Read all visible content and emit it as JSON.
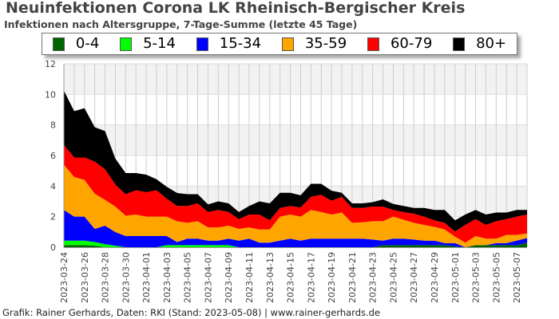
{
  "chart_data": {
    "type": "area",
    "stacked": true,
    "title": "Neuinfektionen Corona LK Rheinisch-Bergischer Kreis",
    "subtitle": "Infektionen nach Altersgruppe, 7-Tage-Summe (letzte 45 Tage)",
    "xlabel": "",
    "ylabel": "",
    "ylim": [
      0,
      12
    ],
    "yticks": [
      "0",
      "2",
      "4",
      "6",
      "8",
      "10",
      "12"
    ],
    "grid": true,
    "legend_position": "top",
    "x": [
      "2023-03-24",
      "2023-03-25",
      "2023-03-26",
      "2023-03-27",
      "2023-03-28",
      "2023-03-29",
      "2023-03-30",
      "2023-03-31",
      "2023-04-01",
      "2023-04-02",
      "2023-04-03",
      "2023-04-04",
      "2023-04-05",
      "2023-04-06",
      "2023-04-07",
      "2023-04-08",
      "2023-04-09",
      "2023-04-10",
      "2023-04-11",
      "2023-04-12",
      "2023-04-13",
      "2023-04-14",
      "2023-04-15",
      "2023-04-16",
      "2023-04-17",
      "2023-04-18",
      "2023-04-19",
      "2023-04-20",
      "2023-04-21",
      "2023-04-22",
      "2023-04-23",
      "2023-04-24",
      "2023-04-25",
      "2023-04-26",
      "2023-04-27",
      "2023-04-28",
      "2023-04-29",
      "2023-04-30",
      "2023-05-01",
      "2023-05-02",
      "2023-05-03",
      "2023-05-04",
      "2023-05-05",
      "2023-05-06",
      "2023-05-07",
      "2023-05-08"
    ],
    "xticks": [
      "2023-03-24",
      "2023-03-26",
      "2023-03-28",
      "2023-03-30",
      "2023-04-01",
      "2023-04-03",
      "2023-04-05",
      "2023-04-07",
      "2023-04-09",
      "2023-04-11",
      "2023-04-13",
      "2023-04-15",
      "2023-04-17",
      "2023-04-19",
      "2023-04-21",
      "2023-04-23",
      "2023-04-25",
      "2023-04-27",
      "2023-04-29",
      "2023-05-01",
      "2023-05-03",
      "2023-05-05",
      "2023-05-07"
    ],
    "series": [
      {
        "name": "0-4",
        "color": "#006400",
        "values": [
          0.14,
          0.14,
          0.14,
          0.1,
          0,
          0,
          0,
          0,
          0,
          0,
          0,
          0,
          0,
          0,
          0,
          0,
          0,
          0,
          0,
          0,
          0,
          0,
          0,
          0,
          0,
          0,
          0,
          0,
          0,
          0,
          0,
          0.14,
          0.14,
          0.14,
          0.14,
          0.14,
          0.14,
          0.14,
          0.05,
          0,
          0.14,
          0.14,
          0.14,
          0.14,
          0.14,
          0.3
        ]
      },
      {
        "name": "5-14",
        "color": "#00ff00",
        "values": [
          0.29,
          0.29,
          0.29,
          0.24,
          0.2,
          0.1,
          0,
          0,
          0,
          0,
          0.14,
          0.14,
          0.14,
          0.14,
          0.14,
          0.14,
          0.14,
          0,
          0,
          0,
          0,
          0,
          0,
          0,
          0,
          0,
          0,
          0,
          0,
          0,
          0,
          0,
          0,
          0,
          0,
          0,
          0,
          0,
          0,
          0,
          0,
          0,
          0,
          0,
          0,
          0
        ]
      },
      {
        "name": "15-34",
        "color": "#0000ff",
        "values": [
          2.01,
          1.57,
          1.57,
          0.86,
          1.21,
          0.89,
          0.73,
          0.73,
          0.73,
          0.73,
          0.59,
          0.2,
          0.42,
          0.42,
          0.29,
          0.29,
          0.42,
          0.43,
          0.56,
          0.3,
          0.3,
          0.43,
          0.56,
          0.43,
          0.56,
          0.56,
          0.56,
          0.56,
          0.56,
          0.56,
          0.5,
          0.29,
          0.42,
          0.42,
          0.36,
          0.29,
          0.29,
          0.13,
          0.22,
          0,
          0,
          0,
          0.13,
          0.13,
          0.29,
          0.3
        ]
      },
      {
        "name": "35-59",
        "color": "#ffa500",
        "values": [
          2.96,
          2.6,
          2.4,
          2.3,
          1.69,
          1.67,
          1.33,
          1.41,
          1.27,
          1.27,
          1.27,
          1.36,
          1.04,
          1.14,
          0.87,
          0.87,
          0.85,
          0.77,
          0.74,
          0.86,
          0.86,
          1.57,
          1.58,
          1.57,
          1.88,
          1.74,
          1.58,
          1.71,
          1.04,
          1.07,
          1.2,
          1.27,
          1.44,
          1.24,
          1.1,
          1.03,
          0.9,
          0.89,
          0.42,
          0.3,
          0.59,
          0.42,
          0.29,
          0.54,
          0.38,
          0.3
        ]
      },
      {
        "name": "60-79",
        "color": "#ff0000",
        "values": [
          1.3,
          1.27,
          1.47,
          2.1,
          2.0,
          1.44,
          1.41,
          1.59,
          1.6,
          1.73,
          1.17,
          1.0,
          1.1,
          1.17,
          1.0,
          1.14,
          0.89,
          0.64,
          0.84,
          0.98,
          0.6,
          0.57,
          0.56,
          0.6,
          0.86,
          1.13,
          0.9,
          1.03,
          0.97,
          0.94,
          0.96,
          0.96,
          0.44,
          0.5,
          0.6,
          0.54,
          0.43,
          0.44,
          0.34,
          1.16,
          1.11,
          0.9,
          1.14,
          1.03,
          1.19,
          1.24
        ]
      },
      {
        "name": "80+",
        "color": "#000000",
        "values": [
          3.55,
          3.03,
          3.23,
          2.25,
          2.5,
          1.7,
          1.38,
          1.12,
          1.15,
          0.72,
          0.78,
          0.85,
          0.77,
          0.6,
          0.5,
          0.56,
          0.57,
          0.46,
          0.56,
          0.86,
          1.11,
          0.99,
          0.86,
          0.8,
          0.85,
          0.72,
          0.66,
          0.26,
          0.3,
          0.3,
          0.29,
          0.47,
          0.39,
          0.4,
          0.37,
          0.57,
          0.68,
          0.84,
          0.73,
          0.68,
          0.6,
          0.68,
          0.57,
          0.43,
          0.44,
          0.3
        ]
      }
    ]
  },
  "credit": "Grafik: Rainer Gerhards, Daten: RKI (Stand: 2023-05-08) | www.rainer-gerhards.de"
}
